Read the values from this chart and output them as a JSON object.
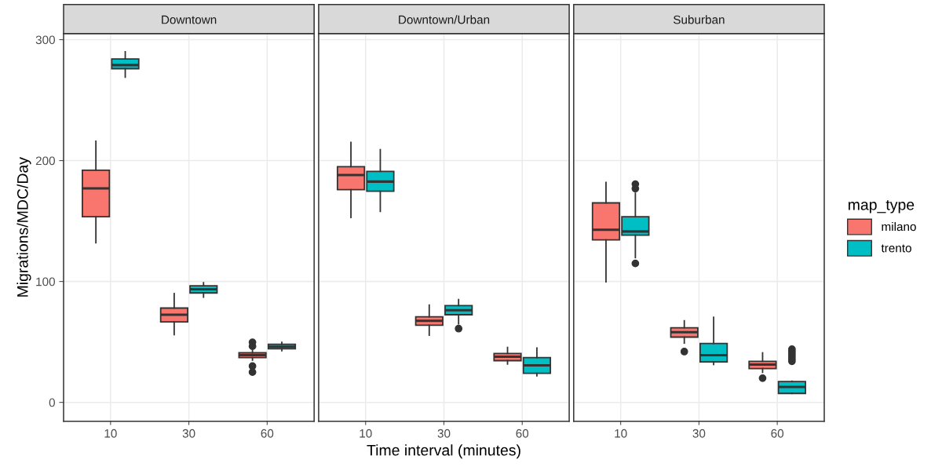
{
  "chart_data": [
    {
      "type": "box",
      "title": "Downtown",
      "ylabel": "Migrations/MDC/Day",
      "categories": [
        "10",
        "30",
        "60"
      ],
      "ylim": [
        -15.6,
        305
      ],
      "yticks": [
        0,
        100,
        200,
        300
      ],
      "grid": true,
      "series": [
        {
          "color": "#f8766d",
          "boxes": [
            {
              "low": 132,
              "q1": 153.5,
              "median": 177,
              "q3": 192,
              "high": 216
            },
            {
              "low": 56,
              "q1": 66.6,
              "median": 72.5,
              "q3": 78,
              "high": 90
            },
            {
              "low": 35,
              "q1": 37,
              "median": 39,
              "q3": 41,
              "high": 43,
              "outliers": [
                49.7,
                46.4,
                30,
                25
              ]
            }
          ]
        },
        {
          "color": "#00bfc4",
          "boxes": [
            {
              "low": 269,
              "q1": 276,
              "median": 279,
              "q3": 284,
              "high": 290
            },
            {
              "low": 87,
              "q1": 90.5,
              "median": 93.6,
              "q3": 96.4,
              "high": 99
            },
            {
              "low": 42.8,
              "q1": 44.3,
              "median": 46,
              "q3": 48,
              "high": 49.7
            }
          ]
        }
      ]
    },
    {
      "type": "box",
      "title": "Downtown/Urban",
      "xlabel": "Time interval (minutes)",
      "categories": [
        "10",
        "30",
        "60"
      ],
      "ylim": [
        -15.6,
        305
      ],
      "yticks": [
        0,
        100,
        200,
        300
      ],
      "grid": true,
      "tick_labels": "x",
      "series": [
        {
          "color": "#f8766d",
          "boxes": [
            {
              "low": 153,
              "q1": 176,
              "median": 188,
              "q3": 195,
              "high": 215
            },
            {
              "low": 55.6,
              "q1": 63.8,
              "median": 67.5,
              "q3": 70.8,
              "high": 80.5
            },
            {
              "low": 31.7,
              "q1": 34.5,
              "median": 37.8,
              "q3": 40.4,
              "high": 45.4
            }
          ]
        },
        {
          "color": "#00bfc4",
          "boxes": [
            {
              "low": 158,
              "q1": 174.6,
              "median": 182.6,
              "q3": 191,
              "high": 209
            },
            {
              "low": 65,
              "q1": 72.5,
              "median": 76.2,
              "q3": 80,
              "high": 85,
              "outliers": [
                61
              ]
            },
            {
              "low": 22,
              "q1": 24,
              "median": 30.6,
              "q3": 37,
              "high": 45
            }
          ]
        }
      ]
    },
    {
      "type": "box",
      "title": "Suburban",
      "categories": [
        "10",
        "30",
        "60"
      ],
      "ylim": [
        -15.6,
        305
      ],
      "yticks": [
        0,
        100,
        200,
        300
      ],
      "grid": true,
      "tick_labels": "x",
      "legend": "right",
      "legend_title": "map_type",
      "series": [
        {
          "name": "milano",
          "color": "#f8766d",
          "boxes": [
            {
              "low": 99.7,
              "q1": 134.4,
              "median": 142.7,
              "q3": 165,
              "high": 182
            },
            {
              "low": 49,
              "q1": 54,
              "median": 58,
              "q3": 61.7,
              "high": 67.5,
              "outliers": [
                42
              ]
            },
            {
              "low": 24.8,
              "q1": 28,
              "median": 31.3,
              "q3": 34,
              "high": 41,
              "outliers": [
                20
              ]
            }
          ]
        },
        {
          "name": "trento",
          "color": "#00bfc4",
          "boxes": [
            {
              "low": 119.7,
              "q1": 138.3,
              "median": 141.4,
              "q3": 153.5,
              "high": 173,
              "outliers": [
                180.5,
                176.8,
                114.9
              ]
            },
            {
              "low": 31.3,
              "q1": 33.4,
              "median": 39,
              "q3": 48.7,
              "high": 70.4
            },
            {
              "low": 7.4,
              "q1": 7.4,
              "median": 12.8,
              "q3": 17.2,
              "high": 17.5,
              "outliers": [
                44,
                42,
                40,
                38,
                36,
                34
              ]
            }
          ]
        }
      ]
    }
  ]
}
